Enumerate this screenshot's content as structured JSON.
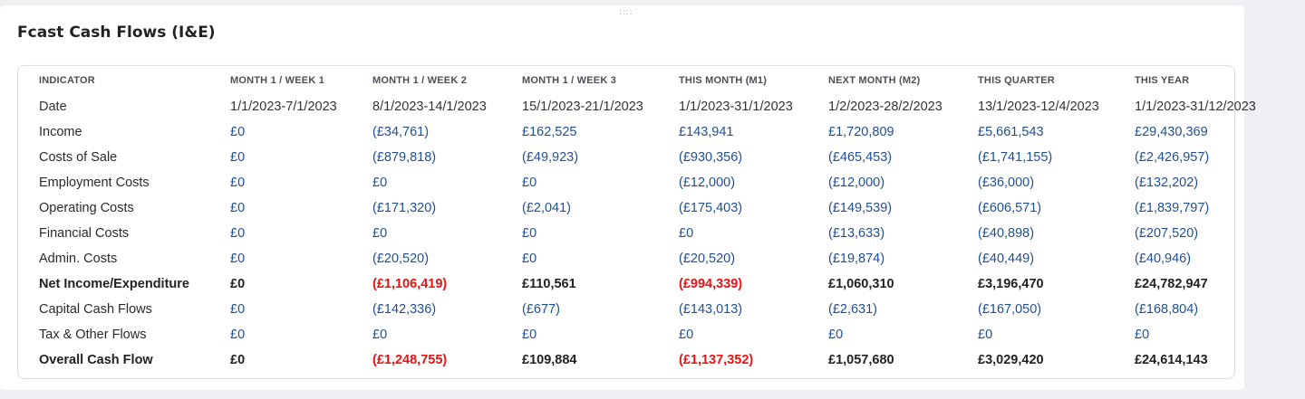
{
  "widget": {
    "title": "Fcast Cash Flows (I&E)",
    "drag_handle": "∷∷"
  },
  "columns": [
    "INDICATOR",
    "MONTH 1 / WEEK 1",
    "MONTH 1 / WEEK 2",
    "MONTH 1 / WEEK 3",
    "THIS MONTH (M1)",
    "NEXT MONTH (M2)",
    "THIS QUARTER",
    "THIS YEAR"
  ],
  "rows": [
    {
      "label": "Date",
      "values": [
        "1/1/2023-7/1/2023",
        "8/1/2023-14/1/2023",
        "15/1/2023-21/1/2023",
        "1/1/2023-31/1/2023",
        "1/2/2023-28/2/2023",
        "13/1/2023-12/4/2023",
        "1/1/2023-31/12/2023"
      ]
    },
    {
      "label": "Income",
      "values": [
        "£0",
        "(£34,761)",
        "£162,525",
        "£143,941",
        "£1,720,809",
        "£5,661,543",
        "£29,430,369"
      ]
    },
    {
      "label": "Costs of Sale",
      "values": [
        "£0",
        "(£879,818)",
        "(£49,923)",
        "(£930,356)",
        "(£465,453)",
        "(£1,741,155)",
        "(£2,426,957)"
      ]
    },
    {
      "label": "Employment Costs",
      "values": [
        "£0",
        "£0",
        "£0",
        "(£12,000)",
        "(£12,000)",
        "(£36,000)",
        "(£132,202)"
      ]
    },
    {
      "label": "Operating Costs",
      "values": [
        "£0",
        "(£171,320)",
        "(£2,041)",
        "(£175,403)",
        "(£149,539)",
        "(£606,571)",
        "(£1,839,797)"
      ]
    },
    {
      "label": "Financial Costs",
      "values": [
        "£0",
        "£0",
        "£0",
        "£0",
        "(£13,633)",
        "(£40,898)",
        "(£207,520)"
      ]
    },
    {
      "label": "Admin. Costs",
      "values": [
        "£0",
        "(£20,520)",
        "£0",
        "(£20,520)",
        "(£19,874)",
        "(£40,449)",
        "(£40,946)"
      ]
    },
    {
      "label": "Net Income/Expenditure",
      "values": [
        "£0",
        "(£1,106,419)",
        "£110,561",
        "(£994,339)",
        "£1,060,310",
        "£3,196,470",
        "£24,782,947"
      ]
    },
    {
      "label": "Capital Cash Flows",
      "values": [
        "£0",
        "(£142,336)",
        "(£677)",
        "(£143,013)",
        "(£2,631)",
        "(£167,050)",
        "(£168,804)"
      ]
    },
    {
      "label": "Tax & Other Flows",
      "values": [
        "£0",
        "£0",
        "£0",
        "£0",
        "£0",
        "£0",
        "£0"
      ]
    },
    {
      "label": "Overall Cash Flow",
      "values": [
        "£0",
        "(£1,248,755)",
        "£109,884",
        "(£1,137,352)",
        "£1,057,680",
        "£3,029,420",
        "£24,614,143"
      ]
    }
  ],
  "colors": {
    "link_value": "#1f4f93",
    "negative_total": "#ee1111",
    "text": "#222222"
  }
}
